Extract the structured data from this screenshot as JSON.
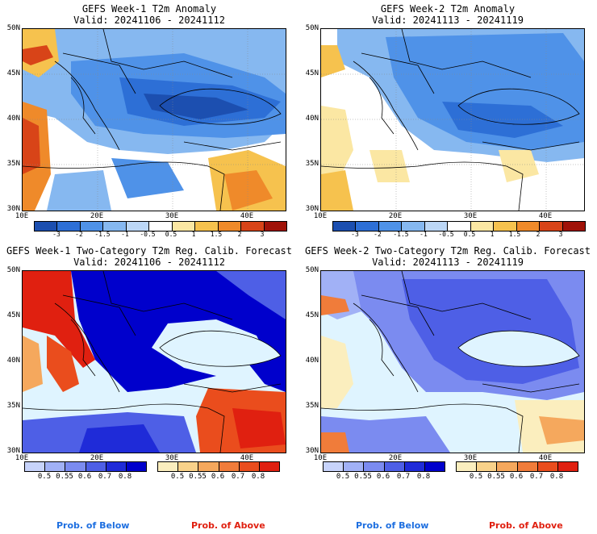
{
  "panels": [
    {
      "id": "p1",
      "title1": "GEFS Week-1 T2m Anomaly",
      "title2": "Valid: 20241106 - 20241112"
    },
    {
      "id": "p2",
      "title1": "GEFS Week-2 T2m Anomaly",
      "title2": "Valid: 20241113 - 20241119"
    },
    {
      "id": "p3",
      "title1": "GEFS Week-1 Two-Category T2m Reg. Calib. Forecast",
      "title2": "Valid: 20241106 - 20241112"
    },
    {
      "id": "p4",
      "title1": "GEFS Week-2 Two-Category T2m Reg. Calib. Forecast",
      "title2": "Valid: 20241113 - 20241119"
    }
  ],
  "lat_labels": [
    "50N",
    "45N",
    "40N",
    "35N",
    "30N"
  ],
  "lon_labels": [
    "10E",
    "20E",
    "30E",
    "40E"
  ],
  "anomaly_colorbar": {
    "labels": [
      "-3",
      "-2",
      "-1.5",
      "-1",
      "-0.5",
      "0.5",
      "1",
      "1.5",
      "2",
      "3"
    ],
    "colors": [
      "#1c4fb0",
      "#2d6fd6",
      "#4f92e8",
      "#86b8f0",
      "#bcd7f6",
      "#ffffff",
      "#fbe7a3",
      "#f6c24e",
      "#ef8a2a",
      "#d84418",
      "#a01208"
    ]
  },
  "prob_below": {
    "labels": [
      "0.5",
      "0.55",
      "0.6",
      "0.7",
      "0.8"
    ],
    "colors": [
      "#c7d3fb",
      "#a1b1f6",
      "#7b8bf0",
      "#4e5fe6",
      "#1f2bd8",
      "#0000cc"
    ]
  },
  "prob_above": {
    "labels": [
      "0.5",
      "0.55",
      "0.6",
      "0.7",
      "0.8"
    ],
    "colors": [
      "#fbeebe",
      "#f9d28a",
      "#f5a85d",
      "#f07c3a",
      "#ea4d1d",
      "#e02010"
    ]
  },
  "footer": {
    "below": "Prob. of Below",
    "above": "Prob. of Above"
  },
  "colors": {
    "below": "#1e6fe0",
    "above": "#e02010",
    "sea_fill": "#dff4ff"
  }
}
